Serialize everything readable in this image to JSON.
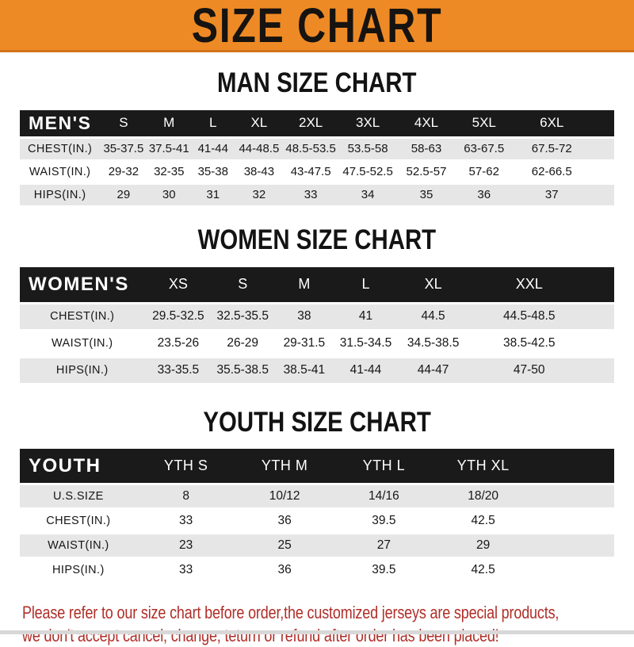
{
  "banner": {
    "title": "SIZE CHART"
  },
  "colors": {
    "banner_orange": "#EE8A25",
    "banner_border_orange": "#D2731B",
    "header_bar_black": "#1A1A1A",
    "row_gray": "#E6E6E6",
    "footer_red": "#B02E28"
  },
  "sections": [
    {
      "id": "mens",
      "heading": "MAN SIZE CHART",
      "group_label": "MEN'S",
      "columns": [
        "S",
        "M",
        "L",
        "XL",
        "2XL",
        "3XL",
        "4XL",
        "5XL",
        "6XL"
      ],
      "rows": [
        {
          "label": "CHEST(IN.)",
          "values": [
            "35-37.5",
            "37.5-41",
            "41-44",
            "44-48.5",
            "48.5-53.5",
            "53.5-58",
            "58-63",
            "63-67.5",
            "67.5-72"
          ]
        },
        {
          "label": "WAIST(IN.)",
          "values": [
            "29-32",
            "32-35",
            "35-38",
            "38-43",
            "43-47.5",
            "47.5-52.5",
            "52.5-57",
            "57-62",
            "62-66.5"
          ]
        },
        {
          "label": "HIPS(IN.)",
          "values": [
            "29",
            "30",
            "31",
            "32",
            "33",
            "34",
            "35",
            "36",
            "37"
          ]
        }
      ]
    },
    {
      "id": "womens",
      "heading": "WOMEN SIZE CHART",
      "group_label": "WOMEN'S",
      "columns": [
        "XS",
        "S",
        "M",
        "L",
        "XL",
        "XXL"
      ],
      "rows": [
        {
          "label": "CHEST(IN.)",
          "values": [
            "29.5-32.5",
            "32.5-35.5",
            "38",
            "41",
            "44.5",
            "44.5-48.5"
          ]
        },
        {
          "label": "WAIST(IN.)",
          "values": [
            "23.5-26",
            "26-29",
            "29-31.5",
            "31.5-34.5",
            "34.5-38.5",
            "38.5-42.5"
          ]
        },
        {
          "label": "HIPS(IN.)",
          "values": [
            "33-35.5",
            "35.5-38.5",
            "38.5-41",
            "41-44",
            "44-47",
            "47-50"
          ]
        }
      ]
    },
    {
      "id": "youth",
      "heading": "YOUTH SIZE CHART",
      "group_label": "YOUTH",
      "columns": [
        "YTH S",
        "YTH M",
        "YTH L",
        "YTH XL"
      ],
      "rows": [
        {
          "label": "U.S.SIZE",
          "values": [
            "8",
            "10/12",
            "14/16",
            "18/20"
          ]
        },
        {
          "label": "CHEST(IN.)",
          "values": [
            "33",
            "36",
            "39.5",
            "42.5"
          ]
        },
        {
          "label": "WAIST(IN.)",
          "values": [
            "23",
            "25",
            "27",
            "29"
          ]
        },
        {
          "label": "HIPS(IN.)",
          "values": [
            "33",
            "36",
            "39.5",
            "42.5"
          ]
        }
      ]
    }
  ],
  "footer": {
    "line1": "Please refer to our size chart before order,the customized jerseys are special products,",
    "line2": "we don't accept cancel, change, teturn or refund after order has been placed!"
  }
}
